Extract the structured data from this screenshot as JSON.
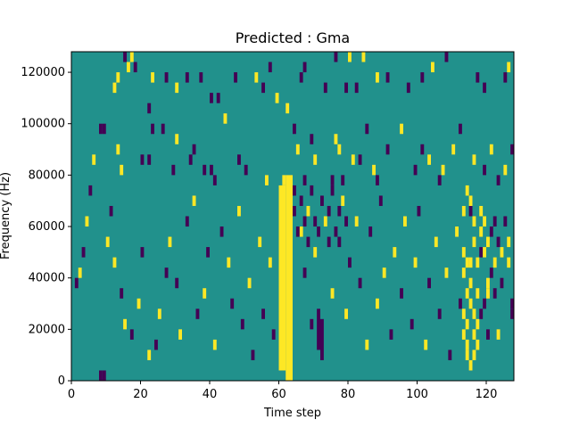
{
  "chart_data": {
    "type": "heatmap",
    "title": "Predicted : Gma",
    "xlabel": "Time step",
    "ylabel": "Frequency (Hz)",
    "xlim": [
      0,
      128
    ],
    "ylim": [
      0,
      128000
    ],
    "x_ticks": [
      0,
      20,
      40,
      60,
      80,
      100,
      120
    ],
    "y_ticks": [
      0,
      20000,
      40000,
      60000,
      80000,
      100000,
      120000
    ],
    "x_tick_labels": [
      "0",
      "20",
      "40",
      "60",
      "80",
      "100",
      "120"
    ],
    "y_tick_labels": [
      "0",
      "20000",
      "40000",
      "60000",
      "80000",
      "100000",
      "120000"
    ],
    "grid": false,
    "colormap": "viridis",
    "colors": {
      "background": "#21918c",
      "high": "#fde725",
      "low": "#440154"
    },
    "cell_size": {
      "time_steps": 1,
      "frequency_hz": 4000
    },
    "dominant_value": "mid",
    "bands": [
      {
        "value": "high",
        "x0": 60,
        "x1": 62,
        "y0": 4000,
        "y1": 76000
      },
      {
        "value": "high",
        "x0": 62,
        "x1": 64,
        "y0": 0,
        "y1": 80000
      },
      {
        "value": "low",
        "x0": 71,
        "x1": 72,
        "y0": 12000,
        "y1": 28000
      },
      {
        "value": "low",
        "x0": 72,
        "x1": 73,
        "y0": 8000,
        "y1": 24000
      }
    ],
    "cells": [
      [
        8,
        0,
        "low"
      ],
      [
        9,
        0,
        "low"
      ],
      [
        12,
        28,
        "high"
      ],
      [
        13,
        29,
        "high"
      ],
      [
        15,
        31,
        "low"
      ],
      [
        16,
        30,
        "high"
      ],
      [
        17,
        31,
        "high"
      ],
      [
        18,
        30,
        "low"
      ],
      [
        22,
        26,
        "low"
      ],
      [
        23,
        29,
        "high"
      ],
      [
        27,
        29,
        "low"
      ],
      [
        30,
        28,
        "high"
      ],
      [
        33,
        29,
        "low"
      ],
      [
        37,
        29,
        "low"
      ],
      [
        40,
        27,
        "low"
      ],
      [
        42,
        27,
        "low"
      ],
      [
        47,
        29,
        "low"
      ],
      [
        53,
        29,
        "high"
      ],
      [
        55,
        28,
        "low"
      ],
      [
        57,
        30,
        "low"
      ],
      [
        66,
        29,
        "low"
      ],
      [
        67,
        30,
        "low"
      ],
      [
        73,
        28,
        "low"
      ],
      [
        76,
        31,
        "low"
      ],
      [
        79,
        28,
        "low"
      ],
      [
        80,
        31,
        "high"
      ],
      [
        82,
        28,
        "low"
      ],
      [
        84,
        31,
        "high"
      ],
      [
        88,
        29,
        "high"
      ],
      [
        91,
        29,
        "low"
      ],
      [
        97,
        28,
        "low"
      ],
      [
        101,
        29,
        "low"
      ],
      [
        104,
        30,
        "high"
      ],
      [
        108,
        31,
        "low"
      ],
      [
        117,
        29,
        "low"
      ],
      [
        119,
        28,
        "low"
      ],
      [
        125,
        29,
        "low"
      ],
      [
        126,
        30,
        "high"
      ],
      [
        9,
        24,
        "low"
      ],
      [
        13,
        22,
        "high"
      ],
      [
        14,
        20,
        "high"
      ],
      [
        20,
        21,
        "low"
      ],
      [
        22,
        21,
        "low"
      ],
      [
        23,
        24,
        "low"
      ],
      [
        26,
        24,
        "low"
      ],
      [
        29,
        20,
        "low"
      ],
      [
        30,
        23,
        "high"
      ],
      [
        34,
        21,
        "low"
      ],
      [
        35,
        22,
        "low"
      ],
      [
        38,
        20,
        "low"
      ],
      [
        40,
        20,
        "low"
      ],
      [
        41,
        19,
        "low"
      ],
      [
        44,
        25,
        "high"
      ],
      [
        48,
        21,
        "low"
      ],
      [
        50,
        20,
        "low"
      ],
      [
        56,
        19,
        "high"
      ],
      [
        59,
        27,
        "high"
      ],
      [
        61,
        19,
        "high"
      ],
      [
        62,
        26,
        "high"
      ],
      [
        64,
        24,
        "low"
      ],
      [
        65,
        22,
        "high"
      ],
      [
        67,
        19,
        "low"
      ],
      [
        69,
        23,
        "low"
      ],
      [
        70,
        21,
        "high"
      ],
      [
        75,
        19,
        "low"
      ],
      [
        76,
        23,
        "high"
      ],
      [
        77,
        22,
        "high"
      ],
      [
        78,
        19,
        "low"
      ],
      [
        81,
        21,
        "high"
      ],
      [
        83,
        21,
        "low"
      ],
      [
        85,
        24,
        "low"
      ],
      [
        87,
        20,
        "high"
      ],
      [
        88,
        19,
        "low"
      ],
      [
        91,
        22,
        "low"
      ],
      [
        95,
        24,
        "high"
      ],
      [
        99,
        20,
        "low"
      ],
      [
        101,
        22,
        "low"
      ],
      [
        103,
        21,
        "high"
      ],
      [
        106,
        19,
        "low"
      ],
      [
        107,
        20,
        "high"
      ],
      [
        110,
        22,
        "high"
      ],
      [
        112,
        24,
        "low"
      ],
      [
        116,
        21,
        "high"
      ],
      [
        119,
        20,
        "low"
      ],
      [
        121,
        22,
        "high"
      ],
      [
        123,
        19,
        "low"
      ],
      [
        125,
        20,
        "high"
      ],
      [
        127,
        22,
        "low"
      ],
      [
        1,
        9,
        "low"
      ],
      [
        2,
        10,
        "high"
      ],
      [
        3,
        12,
        "low"
      ],
      [
        4,
        15,
        "high"
      ],
      [
        5,
        18,
        "low"
      ],
      [
        6,
        21,
        "high"
      ],
      [
        8,
        24,
        "low"
      ],
      [
        10,
        13,
        "high"
      ],
      [
        11,
        16,
        "low"
      ],
      [
        12,
        11,
        "high"
      ],
      [
        14,
        8,
        "low"
      ],
      [
        15,
        5,
        "high"
      ],
      [
        17,
        4,
        "low"
      ],
      [
        19,
        7,
        "high"
      ],
      [
        20,
        12,
        "low"
      ],
      [
        22,
        2,
        "high"
      ],
      [
        24,
        3,
        "low"
      ],
      [
        25,
        6,
        "high"
      ],
      [
        27,
        10,
        "low"
      ],
      [
        28,
        13,
        "high"
      ],
      [
        30,
        9,
        "low"
      ],
      [
        31,
        4,
        "high"
      ],
      [
        33,
        15,
        "low"
      ],
      [
        35,
        17,
        "high"
      ],
      [
        36,
        6,
        "low"
      ],
      [
        38,
        8,
        "high"
      ],
      [
        39,
        12,
        "low"
      ],
      [
        41,
        3,
        "high"
      ],
      [
        43,
        14,
        "low"
      ],
      [
        45,
        11,
        "high"
      ],
      [
        46,
        7,
        "low"
      ],
      [
        48,
        16,
        "high"
      ],
      [
        49,
        5,
        "low"
      ],
      [
        51,
        9,
        "high"
      ],
      [
        52,
        2,
        "low"
      ],
      [
        54,
        13,
        "high"
      ],
      [
        55,
        6,
        "low"
      ],
      [
        57,
        11,
        "high"
      ],
      [
        58,
        4,
        "low"
      ],
      [
        66,
        14,
        "high"
      ],
      [
        67,
        10,
        "low"
      ],
      [
        68,
        16,
        "high"
      ],
      [
        69,
        5,
        "low"
      ],
      [
        70,
        12,
        "high"
      ],
      [
        74,
        16,
        "low"
      ],
      [
        75,
        8,
        "high"
      ],
      [
        77,
        13,
        "low"
      ],
      [
        79,
        6,
        "high"
      ],
      [
        80,
        11,
        "low"
      ],
      [
        82,
        15,
        "high"
      ],
      [
        83,
        9,
        "low"
      ],
      [
        85,
        3,
        "high"
      ],
      [
        86,
        14,
        "low"
      ],
      [
        88,
        7,
        "high"
      ],
      [
        89,
        17,
        "low"
      ],
      [
        90,
        10,
        "high"
      ],
      [
        92,
        4,
        "low"
      ],
      [
        93,
        12,
        "high"
      ],
      [
        95,
        8,
        "low"
      ],
      [
        96,
        15,
        "high"
      ],
      [
        98,
        5,
        "low"
      ],
      [
        99,
        11,
        "high"
      ],
      [
        100,
        16,
        "low"
      ],
      [
        102,
        3,
        "high"
      ],
      [
        103,
        9,
        "low"
      ],
      [
        105,
        13,
        "high"
      ],
      [
        106,
        6,
        "low"
      ],
      [
        108,
        10,
        "high"
      ],
      [
        109,
        2,
        "low"
      ],
      [
        111,
        14,
        "high"
      ],
      [
        112,
        7,
        "low"
      ],
      [
        114,
        11,
        "high"
      ],
      [
        115,
        16,
        "low"
      ],
      [
        117,
        5,
        "high"
      ],
      [
        118,
        12,
        "low"
      ],
      [
        120,
        8,
        "high"
      ],
      [
        122,
        15,
        "low"
      ],
      [
        123,
        4,
        "high"
      ],
      [
        124,
        9,
        "low"
      ],
      [
        126,
        13,
        "high"
      ],
      [
        127,
        6,
        "low"
      ],
      [
        64,
        16,
        "low"
      ],
      [
        64,
        18,
        "low"
      ],
      [
        65,
        14,
        "low"
      ],
      [
        66,
        17,
        "low"
      ],
      [
        67,
        15,
        "low"
      ],
      [
        68,
        13,
        "low"
      ],
      [
        69,
        18,
        "low"
      ],
      [
        70,
        15,
        "low"
      ],
      [
        71,
        14,
        "low"
      ],
      [
        72,
        17,
        "low"
      ],
      [
        73,
        15,
        "high"
      ],
      [
        74,
        13,
        "low"
      ],
      [
        75,
        18,
        "low"
      ],
      [
        76,
        14,
        "low"
      ],
      [
        77,
        16,
        "low"
      ],
      [
        78,
        17,
        "high"
      ],
      [
        79,
        15,
        "low"
      ],
      [
        113,
        10,
        "high"
      ],
      [
        113,
        12,
        "high"
      ],
      [
        114,
        3,
        "high"
      ],
      [
        114,
        5,
        "high"
      ],
      [
        115,
        7,
        "high"
      ],
      [
        115,
        9,
        "high"
      ],
      [
        116,
        4,
        "high"
      ],
      [
        116,
        6,
        "high"
      ],
      [
        117,
        8,
        "high"
      ],
      [
        117,
        11,
        "high"
      ],
      [
        118,
        14,
        "high"
      ],
      [
        118,
        16,
        "high"
      ],
      [
        119,
        12,
        "high"
      ],
      [
        119,
        15,
        "high"
      ],
      [
        120,
        9,
        "high"
      ],
      [
        120,
        13,
        "high"
      ],
      [
        113,
        4,
        "high"
      ],
      [
        114,
        2,
        "high"
      ],
      [
        115,
        1,
        "high"
      ],
      [
        116,
        2,
        "high"
      ],
      [
        117,
        3,
        "high"
      ],
      [
        118,
        6,
        "low"
      ],
      [
        119,
        7,
        "low"
      ],
      [
        120,
        4,
        "low"
      ],
      [
        121,
        10,
        "low"
      ],
      [
        121,
        14,
        "low"
      ],
      [
        122,
        11,
        "high"
      ],
      [
        122,
        8,
        "low"
      ],
      [
        123,
        13,
        "low"
      ],
      [
        124,
        12,
        "high"
      ],
      [
        125,
        15,
        "low"
      ],
      [
        126,
        11,
        "high"
      ],
      [
        127,
        7,
        "low"
      ],
      [
        113,
        16,
        "high"
      ],
      [
        114,
        18,
        "high"
      ],
      [
        115,
        17,
        "high"
      ],
      [
        116,
        15,
        "high"
      ],
      [
        113,
        6,
        "high"
      ],
      [
        114,
        8,
        "high"
      ],
      [
        115,
        11,
        "high"
      ],
      [
        116,
        13,
        "high"
      ]
    ]
  }
}
